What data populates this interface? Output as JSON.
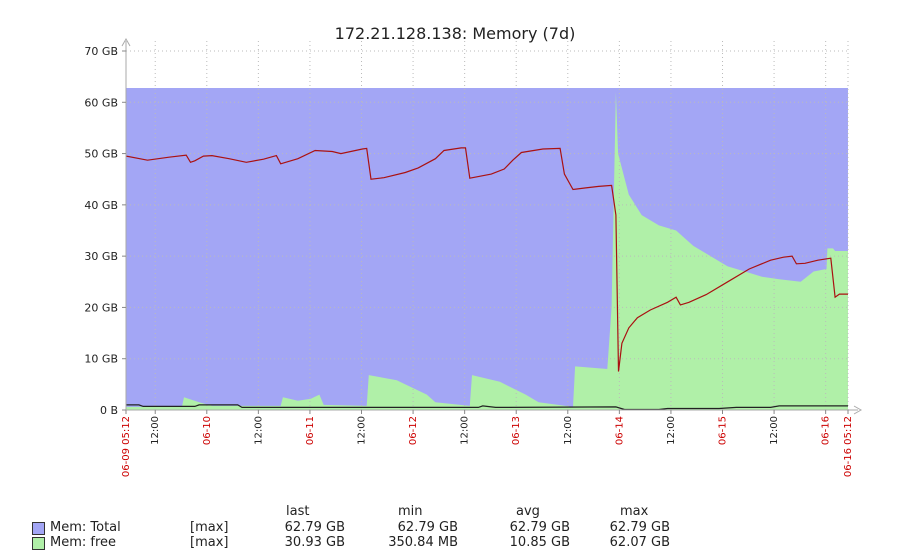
{
  "chart_data": {
    "type": "area",
    "title": "172.21.128.138: Memory (7d)",
    "y_axis": {
      "ticks": [
        "0 B",
        "10 GB",
        "20 GB",
        "30 GB",
        "40 GB",
        "50 GB",
        "60 GB",
        "70 GB"
      ],
      "ylim": [
        0,
        70
      ],
      "unit": "GB"
    },
    "x_axis": {
      "range_hours": [
        0,
        168
      ],
      "ticks": [
        {
          "h": 0,
          "label": "06-09 05:12",
          "color": "#cc0000"
        },
        {
          "h": 6.8,
          "label": "12:00",
          "color": "#222222"
        },
        {
          "h": 18.8,
          "label": "06-10",
          "color": "#cc0000"
        },
        {
          "h": 30.8,
          "label": "12:00",
          "color": "#222222"
        },
        {
          "h": 42.8,
          "label": "06-11",
          "color": "#cc0000"
        },
        {
          "h": 54.8,
          "label": "12:00",
          "color": "#222222"
        },
        {
          "h": 66.8,
          "label": "06-12",
          "color": "#cc0000"
        },
        {
          "h": 78.8,
          "label": "12:00",
          "color": "#222222"
        },
        {
          "h": 90.8,
          "label": "06-13",
          "color": "#cc0000"
        },
        {
          "h": 102.8,
          "label": "12:00",
          "color": "#222222"
        },
        {
          "h": 114.8,
          "label": "06-14",
          "color": "#cc0000"
        },
        {
          "h": 126.8,
          "label": "12:00",
          "color": "#222222"
        },
        {
          "h": 138.8,
          "label": "06-15",
          "color": "#cc0000"
        },
        {
          "h": 150.8,
          "label": "12:00",
          "color": "#222222"
        },
        {
          "h": 162.8,
          "label": "06-16",
          "color": "#cc0000"
        },
        {
          "h": 168,
          "label": "06-16 05:12",
          "color": "#cc0000"
        }
      ]
    },
    "grid": true,
    "colors": {
      "total_fill": "#a3a6f5",
      "free_fill": "#b0f0a8",
      "red_line": "#aa1111",
      "dark_line": "#222222",
      "red_tick": "#cc0000",
      "grid": "#bbbbbb"
    },
    "series": [
      {
        "name": "Mem: Total",
        "style": "area",
        "color": "#a3a6f5",
        "points": [
          [
            0,
            62.79
          ],
          [
            168,
            62.79
          ]
        ]
      },
      {
        "name": "Mem: free",
        "style": "area",
        "color": "#b0f0a8",
        "points": [
          [
            0,
            0.6
          ],
          [
            13,
            0.6
          ],
          [
            13.5,
            2.5
          ],
          [
            17,
            1.5
          ],
          [
            20,
            0.8
          ],
          [
            36,
            0.8
          ],
          [
            36.5,
            2.5
          ],
          [
            40,
            1.8
          ],
          [
            43,
            2.2
          ],
          [
            45,
            3.0
          ],
          [
            46,
            1.0
          ],
          [
            56,
            0.8
          ],
          [
            56.5,
            6.8
          ],
          [
            63,
            5.8
          ],
          [
            70,
            3.0
          ],
          [
            72,
            1.5
          ],
          [
            80,
            0.8
          ],
          [
            80.5,
            6.8
          ],
          [
            87,
            5.5
          ],
          [
            93,
            3.0
          ],
          [
            96,
            1.5
          ],
          [
            104,
            0.6
          ],
          [
            104.5,
            8.5
          ],
          [
            112,
            8.0
          ],
          [
            113,
            20.0
          ],
          [
            114,
            62.0
          ],
          [
            114.5,
            50.0
          ],
          [
            117,
            42.0
          ],
          [
            120,
            38.0
          ],
          [
            124,
            36.0
          ],
          [
            128,
            35.0
          ],
          [
            132,
            32.0
          ],
          [
            136,
            30.0
          ],
          [
            140,
            28.0
          ],
          [
            144,
            27.0
          ],
          [
            148,
            26.0
          ],
          [
            152,
            25.5
          ],
          [
            157,
            25.0
          ],
          [
            160,
            27.0
          ],
          [
            163,
            27.5
          ],
          [
            163.2,
            31.5
          ],
          [
            164.5,
            31.5
          ],
          [
            165,
            31.0
          ],
          [
            168,
            31.0
          ]
        ]
      },
      {
        "name": "",
        "style": "line",
        "color": "#aa1111",
        "points": [
          [
            0,
            49.5
          ],
          [
            5,
            48.7
          ],
          [
            10,
            49.3
          ],
          [
            14,
            49.7
          ],
          [
            15,
            48.3
          ],
          [
            16,
            48.6
          ],
          [
            18,
            49.5
          ],
          [
            20,
            49.6
          ],
          [
            24,
            49.0
          ],
          [
            28,
            48.3
          ],
          [
            32,
            48.9
          ],
          [
            35,
            49.6
          ],
          [
            36,
            48.0
          ],
          [
            40,
            49.0
          ],
          [
            44,
            50.6
          ],
          [
            48,
            50.4
          ],
          [
            50,
            50.0
          ],
          [
            55,
            50.9
          ],
          [
            56,
            51.0
          ],
          [
            57,
            45.0
          ],
          [
            60,
            45.3
          ],
          [
            65,
            46.3
          ],
          [
            68,
            47.2
          ],
          [
            72,
            49.0
          ],
          [
            74,
            50.6
          ],
          [
            78,
            51.1
          ],
          [
            79,
            51.1
          ],
          [
            80,
            45.2
          ],
          [
            85,
            46.0
          ],
          [
            88,
            47.0
          ],
          [
            90,
            48.7
          ],
          [
            92,
            50.2
          ],
          [
            97,
            50.9
          ],
          [
            101,
            51.0
          ],
          [
            102,
            46.0
          ],
          [
            104,
            43.0
          ],
          [
            107,
            43.3
          ],
          [
            110,
            43.6
          ],
          [
            113,
            43.8
          ],
          [
            114,
            38.0
          ],
          [
            114.6,
            7.5
          ],
          [
            115.4,
            13.0
          ],
          [
            117,
            16.0
          ],
          [
            119,
            18.0
          ],
          [
            122,
            19.5
          ],
          [
            126,
            21.0
          ],
          [
            128,
            22.0
          ],
          [
            129,
            20.5
          ],
          [
            131,
            21.0
          ],
          [
            135,
            22.5
          ],
          [
            140,
            25.0
          ],
          [
            145,
            27.5
          ],
          [
            150,
            29.2
          ],
          [
            153,
            29.8
          ],
          [
            155,
            30.0
          ],
          [
            156,
            28.5
          ],
          [
            158,
            28.6
          ],
          [
            161,
            29.2
          ],
          [
            164,
            29.6
          ],
          [
            165,
            22.0
          ],
          [
            166,
            22.6
          ],
          [
            168,
            22.6
          ]
        ]
      },
      {
        "name": "",
        "style": "line",
        "color": "#222222",
        "points": [
          [
            0,
            1.0
          ],
          [
            3,
            1.0
          ],
          [
            4,
            0.7
          ],
          [
            16,
            0.7
          ],
          [
            17,
            1.0
          ],
          [
            26,
            1.0
          ],
          [
            27,
            0.5
          ],
          [
            82,
            0.5
          ],
          [
            83,
            0.8
          ],
          [
            86,
            0.5
          ],
          [
            114,
            0.6
          ],
          [
            116,
            0.1
          ],
          [
            124,
            0.1
          ],
          [
            126,
            0.3
          ],
          [
            138,
            0.3
          ],
          [
            142,
            0.5
          ],
          [
            150,
            0.5
          ],
          [
            152,
            0.8
          ],
          [
            168,
            0.8
          ]
        ]
      }
    ],
    "legend": {
      "columns": [
        "last",
        "min",
        "avg",
        "max"
      ],
      "rows": [
        {
          "name": "Mem: Total",
          "color": "#a3a6f5",
          "func": "[max]",
          "last": "62.79 GB",
          "min": "62.79 GB",
          "avg": "62.79 GB",
          "max": "62.79 GB"
        },
        {
          "name": "Mem: free",
          "color": "#b0f0a8",
          "func": "[max]",
          "last": "30.93 GB",
          "min": "350.84 MB",
          "avg": "10.85 GB",
          "max": "62.07 GB"
        }
      ]
    }
  }
}
